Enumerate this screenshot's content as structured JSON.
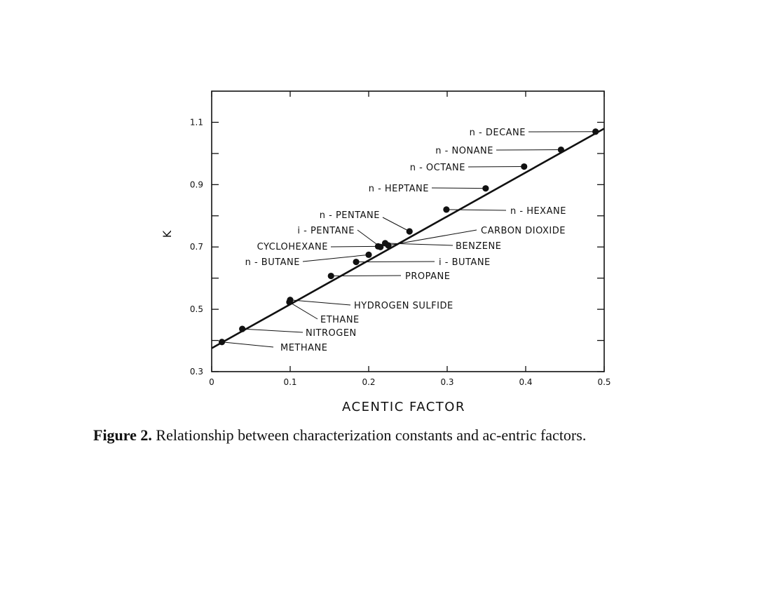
{
  "chart_data": {
    "type": "scatter",
    "xlabel": "ACENTIC FACTOR",
    "ylabel": "K",
    "xlim": [
      0,
      0.5
    ],
    "ylim": [
      0.3,
      1.2
    ],
    "x_ticks": [
      0,
      0.1,
      0.2,
      0.3,
      0.4,
      0.5
    ],
    "x_tick_labels": [
      "0",
      "0.1",
      "0.2",
      "0.3",
      "0.4",
      "0.5"
    ],
    "y_labeled_ticks": [
      0.3,
      0.5,
      0.7,
      0.9,
      1.1
    ],
    "y_tick_labels": [
      "0.3",
      "0.5",
      "0.7",
      "0.9",
      "1.1"
    ],
    "y_minor_ticks": [
      0.4,
      0.6,
      0.8,
      1.0
    ],
    "grid": false,
    "fit_line": {
      "x": [
        0,
        0.5
      ],
      "y": [
        0.375,
        1.08
      ]
    },
    "points": [
      {
        "name": "METHANE",
        "x": 0.013,
        "y": 0.395
      },
      {
        "name": "NITROGEN",
        "x": 0.039,
        "y": 0.437
      },
      {
        "name": "ETHANE",
        "x": 0.099,
        "y": 0.523
      },
      {
        "name": "HYDROGEN SULFIDE",
        "x": 0.1,
        "y": 0.53
      },
      {
        "name": "PROPANE",
        "x": 0.152,
        "y": 0.607
      },
      {
        "name": "n - BUTANE",
        "x": 0.2,
        "y": 0.675
      },
      {
        "name": "i - BUTANE",
        "x": 0.184,
        "y": 0.652
      },
      {
        "name": "CYCLOHEXANE",
        "x": 0.212,
        "y": 0.702
      },
      {
        "name": "i - PENTANE",
        "x": 0.215,
        "y": 0.7
      },
      {
        "name": "BENZENE",
        "x": 0.221,
        "y": 0.712
      },
      {
        "name": "CARBON DIOXIDE",
        "x": 0.225,
        "y": 0.705
      },
      {
        "name": "n - PENTANE",
        "x": 0.252,
        "y": 0.75
      },
      {
        "name": "n - HEXANE",
        "x": 0.299,
        "y": 0.82
      },
      {
        "name": "n - HEPTANE",
        "x": 0.349,
        "y": 0.888
      },
      {
        "name": "n - OCTANE",
        "x": 0.398,
        "y": 0.958
      },
      {
        "name": "n - NONANE",
        "x": 0.445,
        "y": 1.012
      },
      {
        "name": "n - DECANE",
        "x": 0.489,
        "y": 1.07
      }
    ]
  },
  "caption": {
    "label": "Figure 2.",
    "text": " Relationship between characterization constants and ac-entric factors."
  }
}
